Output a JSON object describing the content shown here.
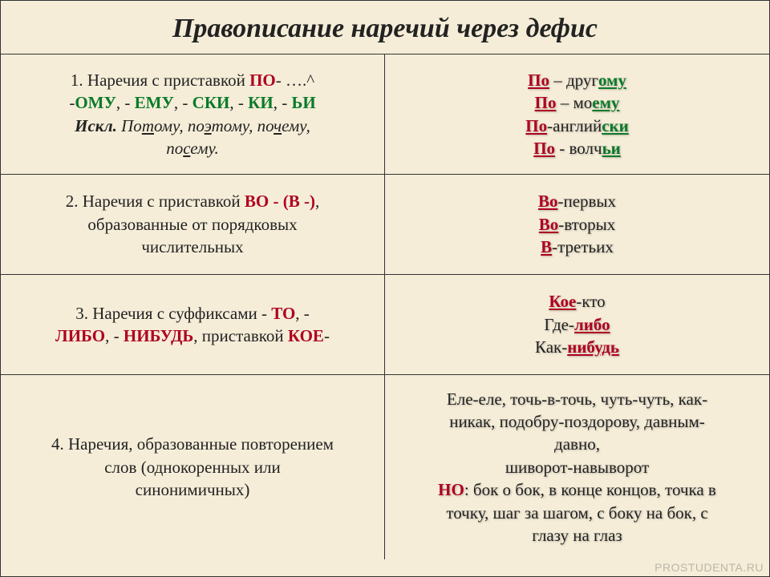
{
  "title": "Правописание наречий через дефис",
  "rows": [
    {
      "left": {
        "line1_pre": "1. Наречия с приставкой ",
        "line1_po": "ПО",
        "line1_post": "- ….^",
        "line2_pre": "-",
        "line2_omu": "ОМУ",
        "line2_s1": ", - ",
        "line2_emu": "ЕМУ",
        "line2_s2": ", - ",
        "line2_ski": "СКИ",
        "line2_s3": ", - ",
        "line2_ki": "КИ",
        "line2_s4": ", - ",
        "line2_i": "ЬИ",
        "line3_iskl": "Искл.",
        "line3_sp": " ",
        "line3_p1a": "По",
        "line3_p1b": "т",
        "line3_p1c": "ому, по",
        "line3_p1d": "э",
        "line3_p1e": "тому, по",
        "line3_p1f": "ч",
        "line3_p1g": "ему,",
        "line4_a": "по",
        "line4_b": "с",
        "line4_c": "ему."
      },
      "right": {
        "l1_po": "По",
        "l1_mid": " – друг",
        "l1_suf": "ому",
        "l2_po": "По",
        "l2_mid": " – мо",
        "l2_suf": "ему",
        "l3_po": "По",
        "l3_mid": "-англий",
        "l3_suf": "ски",
        "l4_po": "По",
        "l4_mid": " - волч",
        "l4_suf": "ьи"
      }
    },
    {
      "left": {
        "l1_pre": "2. Наречия с приставкой ",
        "l1_vo": "ВО - (В -)",
        "l1_post": ",",
        "l2": "образованные от порядковых",
        "l3": "числительных"
      },
      "right": {
        "l1_vo": "Во",
        "l1_rest": "-первых",
        "l2_vo": "Во",
        "l2_rest": "-вторых",
        "l3_v": "В",
        "l3_rest": "-третьих"
      }
    },
    {
      "left": {
        "l1_pre": "3. Наречия с суффиксами  - ",
        "l1_to": "ТО",
        "l1_s": ", -",
        "l2_libo": "ЛИБО",
        "l2_s1": ", - ",
        "l2_nib": "НИБУДЬ",
        "l2_s2": ", приставкой ",
        "l2_koe": "КОЕ",
        "l2_end": "-"
      },
      "right": {
        "l1_koe": " Кое",
        "l1_rest": "-кто",
        "l2_pre": "Где-",
        "l2_libo": "либо",
        "l3_pre": "Как-",
        "l3_nib": "нибудь"
      }
    },
    {
      "left": {
        "l1": "4. Наречия, образованные повторением",
        "l2": "слов (однокоренных или",
        "l3": "синонимичных)"
      },
      "right": {
        "l1": "Еле-еле, точь-в-точь, чуть-чуть, как-",
        "l2": "никак, подобру-поздорову, давным-",
        "l3": "давно,",
        "l4": "шиворот-навыворот",
        "l5_no": "НО",
        "l5_rest": ": бок о бок, в конце концов, точка в",
        "l6": "точку, шаг за шагом, с боку на бок, с",
        "l7": "глазу на глаз"
      }
    }
  ],
  "watermark": "PROSTUDENTA.RU"
}
